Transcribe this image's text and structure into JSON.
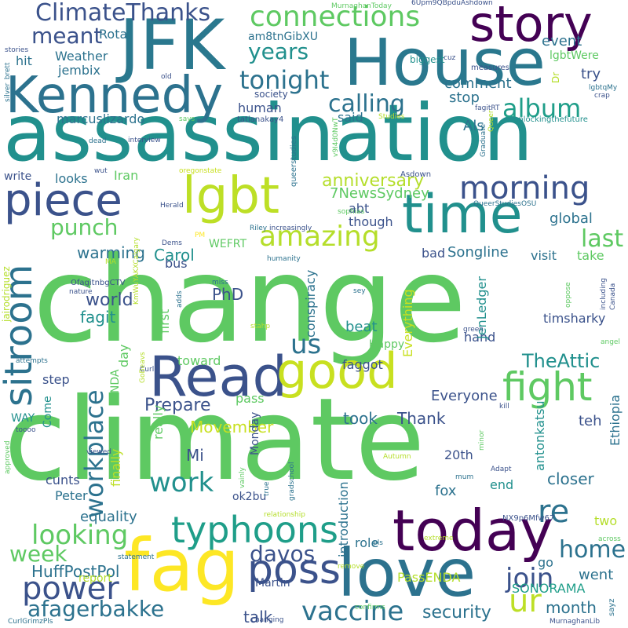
{
  "words": [
    {
      "text": "change",
      "color": "#5ec962"
    },
    {
      "text": "climate",
      "color": "#5ec962"
    },
    {
      "text": "assassination",
      "color": "#21908d"
    },
    {
      "text": "House",
      "color": "#2a788e"
    },
    {
      "text": "JFK",
      "color": "#2a788e"
    },
    {
      "text": "Kennedy",
      "color": "#2c728e"
    },
    {
      "text": "Read",
      "color": "#3b528b"
    },
    {
      "text": "today",
      "color": "#440154"
    },
    {
      "text": "love",
      "color": "#2c728e"
    },
    {
      "text": "fag",
      "color": "#fde725"
    },
    {
      "text": "good",
      "color": "#c8e020"
    },
    {
      "text": "time",
      "color": "#21908d"
    },
    {
      "text": "lgbt",
      "color": "#bddf26"
    },
    {
      "text": "piece",
      "color": "#3b528b"
    },
    {
      "text": "story",
      "color": "#440154"
    },
    {
      "text": "connections",
      "color": "#5ec962"
    },
    {
      "text": "sitroom",
      "color": "#2c728e"
    },
    {
      "text": "poss",
      "color": "#3b528b"
    },
    {
      "text": "fight",
      "color": "#5ec962"
    },
    {
      "text": "typhoons",
      "color": "#1f9e89"
    },
    {
      "text": "amazing",
      "color": "#b5de2b"
    },
    {
      "text": "morning",
      "color": "#3b528b"
    },
    {
      "text": "ur",
      "color": "#bddf26"
    },
    {
      "text": "power",
      "color": "#3b528b"
    },
    {
      "text": "vaccine",
      "color": "#2c728e"
    },
    {
      "text": "workplace",
      "color": "#2c728e"
    },
    {
      "text": "us",
      "color": "#2c728e"
    },
    {
      "text": "ClimateThanks",
      "color": "#3b528b"
    },
    {
      "text": "album",
      "color": "#1f9e89"
    },
    {
      "text": "calling",
      "color": "#2c728e"
    },
    {
      "text": "tonight",
      "color": "#2c728e"
    },
    {
      "text": "years",
      "color": "#21908d"
    },
    {
      "text": "meant",
      "color": "#3b528b"
    },
    {
      "text": "looking",
      "color": "#5ec962"
    },
    {
      "text": "afagerbakke",
      "color": "#2c728e"
    },
    {
      "text": "work",
      "color": "#21908d"
    },
    {
      "text": "home",
      "color": "#2c728e"
    },
    {
      "text": "re",
      "color": "#2c728e"
    },
    {
      "text": "join",
      "color": "#3b528b"
    },
    {
      "text": "davos",
      "color": "#3b528b"
    },
    {
      "text": "week",
      "color": "#5ec962"
    },
    {
      "text": "punch",
      "color": "#5ec962"
    },
    {
      "text": "last",
      "color": "#5ec962"
    },
    {
      "text": "anniversary",
      "color": "#b5de2b"
    },
    {
      "text": "Prepare",
      "color": "#3b528b"
    },
    {
      "text": "TheAttic",
      "color": "#21908d"
    },
    {
      "text": "world",
      "color": "#3b528b"
    },
    {
      "text": "Carol",
      "color": "#21908d"
    },
    {
      "text": "PhD",
      "color": "#3b528b"
    },
    {
      "text": "fagit",
      "color": "#21908d"
    },
    {
      "text": "warming",
      "color": "#2c728e"
    },
    {
      "text": "security",
      "color": "#2c728e"
    },
    {
      "text": "month",
      "color": "#2c728e"
    },
    {
      "text": "talk",
      "color": "#3b528b"
    },
    {
      "text": "HuffPostPol",
      "color": "#2c728e"
    },
    {
      "text": "SONORAMA",
      "color": "#1f9e89"
    },
    {
      "text": "PassENDA",
      "color": "#b5de2b"
    },
    {
      "text": "went",
      "color": "#2c728e"
    },
    {
      "text": "equality",
      "color": "#2c728e"
    },
    {
      "text": "Movember",
      "color": "#c8e020"
    },
    {
      "text": "Everyone",
      "color": "#3b528b"
    },
    {
      "text": "Thank",
      "color": "#3b528b"
    },
    {
      "text": "took",
      "color": "#2c728e"
    },
    {
      "text": "closer",
      "color": "#2c728e"
    },
    {
      "text": "Mi",
      "color": "#3b528b"
    },
    {
      "text": "Songline",
      "color": "#2c728e"
    },
    {
      "text": "global",
      "color": "#2c728e"
    },
    {
      "text": "comment",
      "color": "#2c728e"
    },
    {
      "text": "stop",
      "color": "#2c728e"
    },
    {
      "text": "event",
      "color": "#2c728e"
    },
    {
      "text": "try",
      "color": "#3b528b"
    },
    {
      "text": "lgbtWere",
      "color": "#5ec962"
    },
    {
      "text": "Rota",
      "color": "#2c728e"
    },
    {
      "text": "Weather",
      "color": "#2c728e"
    },
    {
      "text": "jembix",
      "color": "#2c728e"
    },
    {
      "text": "hit",
      "color": "#2c728e"
    },
    {
      "text": "marcuslizardo",
      "color": "#2c728e"
    },
    {
      "text": "human",
      "color": "#3b528b"
    },
    {
      "text": "said",
      "color": "#2c728e"
    },
    {
      "text": "Als",
      "color": "#2c728e"
    },
    {
      "text": "Iran",
      "color": "#5ec962"
    },
    {
      "text": "looks",
      "color": "#2c728e"
    },
    {
      "text": "write",
      "color": "#3b528b"
    },
    {
      "text": "7NewsSydney",
      "color": "#5ec962"
    },
    {
      "text": "abt",
      "color": "#3b528b"
    },
    {
      "text": "though",
      "color": "#3b528b"
    },
    {
      "text": "bad",
      "color": "#3b528b"
    },
    {
      "text": "bus",
      "color": "#3b528b"
    },
    {
      "text": "visit",
      "color": "#2c728e"
    },
    {
      "text": "take",
      "color": "#5ec962"
    },
    {
      "text": "timsharky",
      "color": "#3b528b"
    },
    {
      "text": "beat",
      "color": "#21908d"
    },
    {
      "text": "hand",
      "color": "#3b528b"
    },
    {
      "text": "faggot",
      "color": "#3b528b"
    },
    {
      "text": "pass",
      "color": "#5ec962"
    },
    {
      "text": "teh",
      "color": "#3b528b"
    },
    {
      "text": "step",
      "color": "#3b528b"
    },
    {
      "text": "WAY",
      "color": "#21908d"
    },
    {
      "text": "Come",
      "color": "#21908d"
    },
    {
      "text": "cunts",
      "color": "#3b528b"
    },
    {
      "text": "Peter",
      "color": "#2c728e"
    },
    {
      "text": "fox",
      "color": "#2c728e"
    },
    {
      "text": "end",
      "color": "#21908d"
    },
    {
      "text": "role",
      "color": "#2c728e"
    },
    {
      "text": "two",
      "color": "#b5de2b"
    },
    {
      "text": "go",
      "color": "#2c728e"
    },
    {
      "text": "20th",
      "color": "#3b528b"
    },
    {
      "text": "ok2bu",
      "color": "#3b528b"
    },
    {
      "text": "Martin",
      "color": "#3b528b"
    },
    {
      "text": "report",
      "color": "#b5de2b"
    },
    {
      "text": "Happy",
      "color": "#5ec962"
    },
    {
      "text": "toward",
      "color": "#5ec962"
    },
    {
      "text": "Monday",
      "color": "#3b528b"
    },
    {
      "text": "WEFRT",
      "color": "#5ec962"
    },
    {
      "text": "first",
      "color": "#5ec962"
    },
    {
      "text": "day",
      "color": "#5ec962"
    },
    {
      "text": "ENDA",
      "color": "#5ec962"
    },
    {
      "text": "really",
      "color": "#5ec962"
    },
    {
      "text": "finally",
      "color": "#bddf26"
    },
    {
      "text": "introduction",
      "color": "#2c728e"
    },
    {
      "text": "conspiracy",
      "color": "#2c728e"
    },
    {
      "text": "Everything",
      "color": "#c8e020"
    },
    {
      "text": "JenLedger",
      "color": "#21908d"
    },
    {
      "text": "antonkatsu",
      "color": "#21908d"
    },
    {
      "text": "Ethiopia",
      "color": "#2c728e"
    },
    {
      "text": "jairodriguez",
      "color": "#b5de2b"
    },
    {
      "text": "am8tnGibXU",
      "color": "#2c728e"
    },
    {
      "text": "society",
      "color": "#3b528b"
    },
    {
      "text": "tatianakay4",
      "color": "#3b528b"
    },
    {
      "text": "queerstudies",
      "color": "#2c728e"
    },
    {
      "text": "unlockingthefuture",
      "color": "#21908d"
    },
    {
      "text": "biggest",
      "color": "#21908d"
    },
    {
      "text": "measures",
      "color": "#3b528b"
    },
    {
      "text": "6Upm9QBpduAshdown",
      "color": "#3b528b"
    },
    {
      "text": "MurnaghanToday",
      "color": "#5ec962"
    },
    {
      "text": "changing",
      "color": "#3b528b"
    },
    {
      "text": "MurnaghanLib",
      "color": "#3b528b"
    },
    {
      "text": "CurlGrimzPls",
      "color": "#2c728e"
    },
    {
      "text": "sayz",
      "color": "#2c728e"
    },
    {
      "text": "confirms",
      "color": "#5ec962"
    },
    {
      "text": "remove",
      "color": "#b5de2b"
    },
    {
      "text": "statement",
      "color": "#2c728e"
    },
    {
      "text": "relationship",
      "color": "#b5de2b"
    },
    {
      "text": "pls",
      "color": "#2c728e"
    },
    {
      "text": "extreme",
      "color": "#b5de2b"
    },
    {
      "text": "across",
      "color": "#5ec962"
    },
    {
      "text": "NX9p6Mfw67",
      "color": "#3b528b"
    },
    {
      "text": "Adapt",
      "color": "#3b528b"
    },
    {
      "text": "Autumn",
      "color": "#b5de2b"
    },
    {
      "text": "mum",
      "color": "#2c728e"
    },
    {
      "text": "gradschool",
      "color": "#2c728e"
    },
    {
      "text": "true",
      "color": "#2c728e"
    },
    {
      "text": "vainly",
      "color": "#5ec962"
    },
    {
      "text": "minor",
      "color": "#5ec962"
    },
    {
      "text": "Asdown",
      "color": "#3b528b"
    },
    {
      "text": "v9I4d0NwT",
      "color": "#5ec962"
    },
    {
      "text": "Graduate",
      "color": "#2c728e"
    },
    {
      "text": "Queer",
      "color": "#b5de2b"
    },
    {
      "text": "Dr",
      "color": "#b5de2b"
    },
    {
      "text": "fagitRT",
      "color": "#3b528b"
    },
    {
      "text": "Studies",
      "color": "#b5de2b"
    },
    {
      "text": "says",
      "color": "#5ec962"
    },
    {
      "text": "cuz",
      "color": "#3b528b"
    },
    {
      "text": "lgbtqMy",
      "color": "#2c728e"
    },
    {
      "text": "crap",
      "color": "#3b528b"
    },
    {
      "text": "oppose",
      "color": "#5ec962"
    },
    {
      "text": "QueerStudiesOSU",
      "color": "#2c728e"
    },
    {
      "text": "sophias",
      "color": "#5ec962"
    },
    {
      "text": "increasingly",
      "color": "#3b528b"
    },
    {
      "text": "Riley",
      "color": "#2c728e"
    },
    {
      "text": "humanity",
      "color": "#2c728e"
    },
    {
      "text": "miss",
      "color": "#2c728e"
    },
    {
      "text": "sey",
      "color": "#2c728e"
    },
    {
      "text": "stahp",
      "color": "#b5de2b"
    },
    {
      "text": "green",
      "color": "#3b528b"
    },
    {
      "text": "Herald",
      "color": "#3b528b"
    },
    {
      "text": "oregonstate",
      "color": "#c8e020"
    },
    {
      "text": "interview",
      "color": "#3b528b"
    },
    {
      "text": "wut",
      "color": "#3b528b"
    },
    {
      "text": "dead",
      "color": "#2c728e"
    },
    {
      "text": "old",
      "color": "#3b528b"
    },
    {
      "text": "stories",
      "color": "#3b528b"
    },
    {
      "text": "silver_brett",
      "color": "#2c728e"
    },
    {
      "text": "OfagitnbgCTV",
      "color": "#3b528b"
    },
    {
      "text": "nature",
      "color": "#3b528b"
    },
    {
      "text": "KmWuYAKXCalgary",
      "color": "#b5de2b"
    },
    {
      "text": "GoBeavs",
      "color": "#b5de2b"
    },
    {
      "text": "PM",
      "color": "#fde725"
    },
    {
      "text": "Dems",
      "color": "#3b528b"
    },
    {
      "text": "MA",
      "color": "#b5de2b"
    },
    {
      "text": "adds",
      "color": "#2c728e"
    },
    {
      "text": "Curl",
      "color": "#3b528b"
    },
    {
      "text": "attempts",
      "color": "#2c728e"
    },
    {
      "text": "toooo",
      "color": "#3b528b"
    },
    {
      "text": "approved",
      "color": "#5ec962"
    },
    {
      "text": "viewed",
      "color": "#3b528b"
    },
    {
      "text": "kill",
      "color": "#3b528b"
    },
    {
      "text": "angel",
      "color": "#5ec962"
    },
    {
      "text": "including",
      "color": "#3b528b"
    },
    {
      "text": "Canada",
      "color": "#3b528b"
    }
  ]
}
